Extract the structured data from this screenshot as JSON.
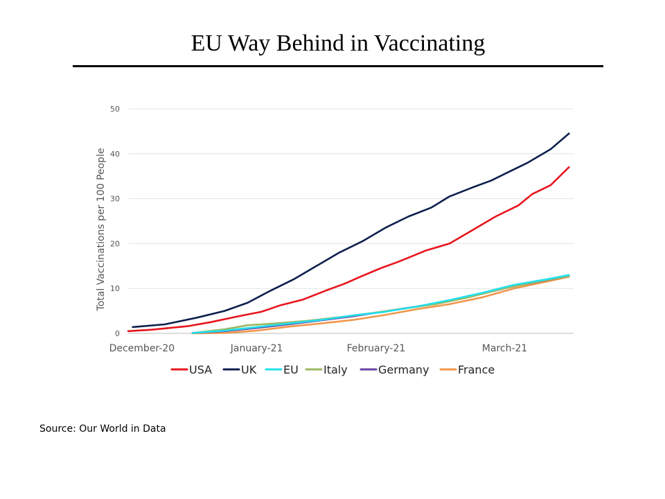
{
  "slide": {
    "title": "EU Way Behind in Vaccinating",
    "source": "Source: Our World in Data"
  },
  "chart_data": {
    "type": "line",
    "title": "",
    "ylabel": "Total Vaccinations per 100 People",
    "xlabel": "",
    "ylim": [
      0,
      50
    ],
    "yticks": [
      0,
      10,
      20,
      30,
      40,
      50
    ],
    "xlim": [
      "2020-12-13",
      "2021-03-20"
    ],
    "xticks": [
      {
        "date": "2020-12-16",
        "label": "December-20"
      },
      {
        "date": "2021-01-10",
        "label": "January-21"
      },
      {
        "date": "2021-02-05",
        "label": "February-21"
      },
      {
        "date": "2021-03-05",
        "label": "March-21"
      }
    ],
    "grid": true,
    "legend_position": "bottom",
    "series": [
      {
        "name": "USA",
        "color": "#e8141c",
        "points": [
          [
            "2020-12-13",
            0.5
          ],
          [
            "2020-12-18",
            0.8
          ],
          [
            "2020-12-22",
            1.2
          ],
          [
            "2020-12-26",
            1.6
          ],
          [
            "2020-12-31",
            2.5
          ],
          [
            "2021-01-06",
            3.8
          ],
          [
            "2021-01-11",
            4.8
          ],
          [
            "2021-01-15",
            6.2
          ],
          [
            "2021-01-20",
            7.5
          ],
          [
            "2021-01-25",
            9.5
          ],
          [
            "2021-01-29",
            11.0
          ],
          [
            "2021-02-02",
            12.8
          ],
          [
            "2021-02-06",
            14.5
          ],
          [
            "2021-02-10",
            16.0
          ],
          [
            "2021-02-16",
            18.5
          ],
          [
            "2021-02-21",
            20.0
          ],
          [
            "2021-02-26",
            23.0
          ],
          [
            "2021-03-03",
            26.0
          ],
          [
            "2021-03-08",
            28.5
          ],
          [
            "2021-03-11",
            31.0
          ],
          [
            "2021-03-15",
            33.0
          ],
          [
            "2021-03-19",
            37.0
          ]
        ]
      },
      {
        "name": "UK",
        "color": "#0c1f4d",
        "points": [
          [
            "2020-12-14",
            1.4
          ],
          [
            "2020-12-21",
            2.0
          ],
          [
            "2020-12-28",
            3.5
          ],
          [
            "2021-01-03",
            5.0
          ],
          [
            "2021-01-08",
            6.8
          ],
          [
            "2021-01-13",
            9.5
          ],
          [
            "2021-01-18",
            12.0
          ],
          [
            "2021-01-23",
            15.0
          ],
          [
            "2021-01-28",
            18.0
          ],
          [
            "2021-02-02",
            20.5
          ],
          [
            "2021-02-07",
            23.5
          ],
          [
            "2021-02-12",
            26.0
          ],
          [
            "2021-02-17",
            28.0
          ],
          [
            "2021-02-21",
            30.5
          ],
          [
            "2021-02-26",
            32.5
          ],
          [
            "2021-03-02",
            34.0
          ],
          [
            "2021-03-06",
            36.0
          ],
          [
            "2021-03-10",
            38.0
          ],
          [
            "2021-03-15",
            41.0
          ],
          [
            "2021-03-19",
            44.5
          ]
        ]
      },
      {
        "name": "EU",
        "color": "#21e0ee",
        "points": [
          [
            "2020-12-27",
            0.1
          ],
          [
            "2021-01-03",
            0.6
          ],
          [
            "2021-01-10",
            1.4
          ],
          [
            "2021-01-17",
            2.2
          ],
          [
            "2021-01-24",
            3.0
          ],
          [
            "2021-01-31",
            4.0
          ],
          [
            "2021-02-07",
            4.8
          ],
          [
            "2021-02-14",
            6.0
          ],
          [
            "2021-02-21",
            7.4
          ],
          [
            "2021-02-28",
            9.0
          ],
          [
            "2021-03-07",
            10.8
          ],
          [
            "2021-03-14",
            12.0
          ],
          [
            "2021-03-19",
            13.0
          ]
        ]
      },
      {
        "name": "Italy",
        "color": "#9bb860",
        "points": [
          [
            "2020-12-27",
            0.1
          ],
          [
            "2021-01-03",
            0.9
          ],
          [
            "2021-01-08",
            1.8
          ],
          [
            "2021-01-14",
            2.2
          ],
          [
            "2021-01-21",
            2.8
          ],
          [
            "2021-01-28",
            3.6
          ],
          [
            "2021-02-04",
            4.5
          ],
          [
            "2021-02-11",
            5.5
          ],
          [
            "2021-02-18",
            6.5
          ],
          [
            "2021-02-25",
            8.0
          ],
          [
            "2021-03-04",
            9.8
          ],
          [
            "2021-03-11",
            11.3
          ],
          [
            "2021-03-19",
            12.8
          ]
        ]
      },
      {
        "name": "Germany",
        "color": "#6a3fa2",
        "points": [
          [
            "2020-12-27",
            0.1
          ],
          [
            "2021-01-03",
            0.5
          ],
          [
            "2021-01-10",
            1.2
          ],
          [
            "2021-01-17",
            2.0
          ],
          [
            "2021-01-24",
            2.9
          ],
          [
            "2021-01-31",
            3.8
          ],
          [
            "2021-02-07",
            4.9
          ],
          [
            "2021-02-14",
            6.0
          ],
          [
            "2021-02-21",
            7.2
          ],
          [
            "2021-02-28",
            8.8
          ],
          [
            "2021-03-07",
            10.5
          ],
          [
            "2021-03-14",
            11.8
          ],
          [
            "2021-03-19",
            12.8
          ]
        ]
      },
      {
        "name": "France",
        "color": "#f0964a",
        "points": [
          [
            "2020-12-27",
            0.0
          ],
          [
            "2021-01-03",
            0.1
          ],
          [
            "2021-01-10",
            0.6
          ],
          [
            "2021-01-17",
            1.5
          ],
          [
            "2021-01-24",
            2.2
          ],
          [
            "2021-01-31",
            3.0
          ],
          [
            "2021-02-07",
            4.1
          ],
          [
            "2021-02-14",
            5.4
          ],
          [
            "2021-02-21",
            6.5
          ],
          [
            "2021-02-28",
            8.0
          ],
          [
            "2021-03-07",
            10.0
          ],
          [
            "2021-03-14",
            11.5
          ],
          [
            "2021-03-19",
            12.6
          ]
        ]
      }
    ]
  }
}
